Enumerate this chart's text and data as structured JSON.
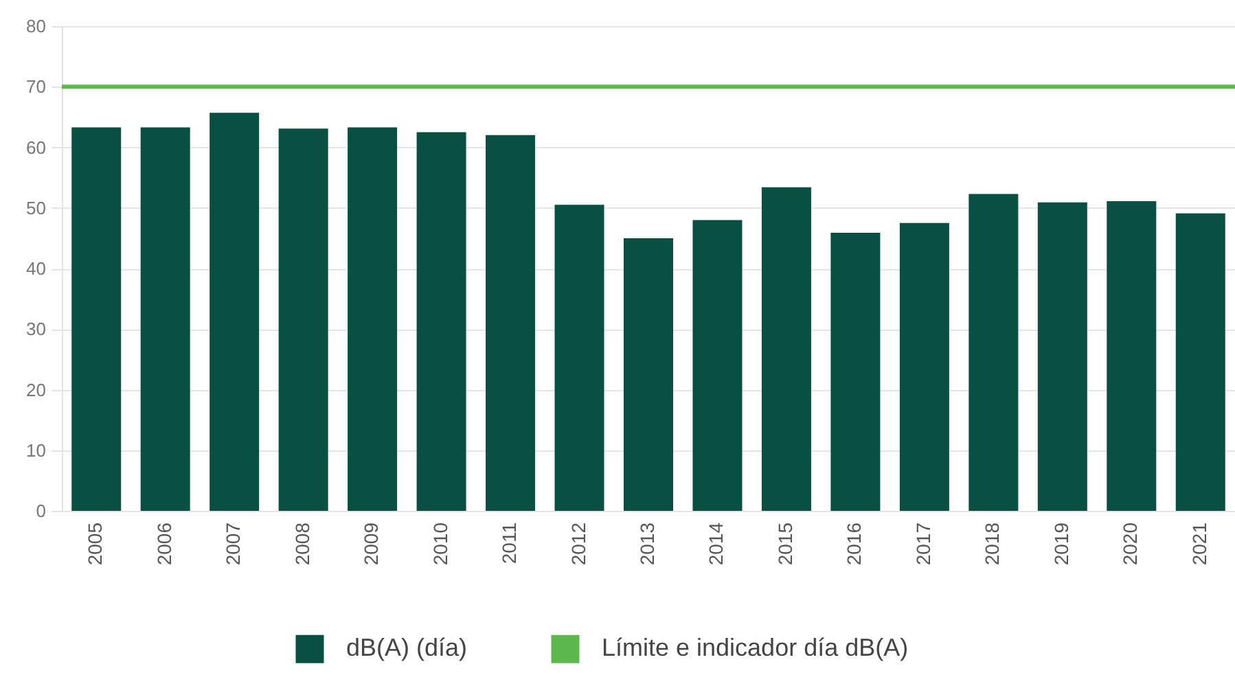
{
  "chart_data": {
    "type": "bar",
    "categories": [
      "2005",
      "2006",
      "2007",
      "2008",
      "2009",
      "2010",
      "2011",
      "2012",
      "2013",
      "2014",
      "2015",
      "2016",
      "2017",
      "2018",
      "2019",
      "2020",
      "2021"
    ],
    "series": [
      {
        "name": "dB(A) (día)",
        "color": "#085142",
        "values": [
          63.3,
          63.3,
          65.7,
          63.1,
          63.3,
          62.5,
          62.0,
          50.5,
          45.0,
          48.0,
          53.4,
          45.9,
          47.5,
          52.3,
          50.9,
          51.1,
          49.1
        ]
      }
    ],
    "ref_lines": [
      {
        "axis": "y",
        "value": 70,
        "label": "Límite e indicador día dB(A)",
        "color": "#5cb84a"
      }
    ],
    "ylim": [
      0,
      80
    ],
    "yticks": [
      0,
      10,
      20,
      30,
      40,
      50,
      60,
      70,
      80
    ],
    "grid": "y",
    "legend": "bottom"
  }
}
